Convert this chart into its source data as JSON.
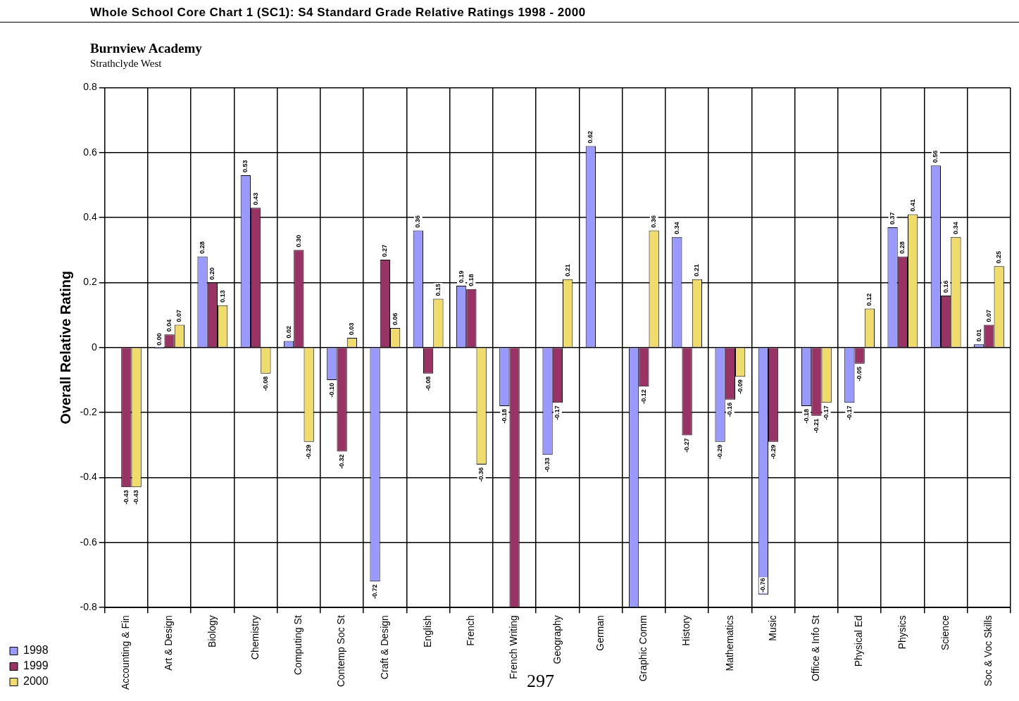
{
  "chart_data": {
    "type": "bar",
    "title": "Whole School Core Chart 1 (SC1): S4 Standard Grade Relative Ratings 1998 - 2000",
    "subtitle": "Burnview Academy\nStrathclyde West",
    "ylabel": "Overall Relative Rating",
    "categories": [
      "Accounting & Fin",
      "Art & Design",
      "Biology",
      "Chemistry",
      "Computing St",
      "Contemp Soc St",
      "Craft & Design",
      "English",
      "French",
      "French Writing",
      "Geography",
      "German",
      "Graphic Comm",
      "History",
      "Mathematics",
      "Music",
      "Office & Info St",
      "Physical Ed",
      "Physics",
      "Science",
      "Soc & Voc Skills"
    ],
    "series": [
      {
        "name": "1998",
        "color": "#9999ff",
        "values": [
          null,
          0.0,
          0.28,
          0.53,
          0.02,
          -0.1,
          -0.72,
          0.36,
          0.19,
          -0.18,
          -0.33,
          0.62,
          -0.8,
          0.34,
          -0.29,
          -0.76,
          -0.18,
          -0.17,
          0.37,
          0.56,
          0.01
        ],
        "value_labels": [
          null,
          "0.00",
          "0.28",
          "0.53",
          "0.02",
          "-0.10",
          "-0.72",
          "0.36",
          "0.19",
          "-0.18",
          "-0.33",
          "0.62",
          null,
          "0.34",
          "-0.29",
          "-0.76",
          "-0.18",
          "-0.17",
          "0.37",
          "0.56",
          "0.01"
        ]
      },
      {
        "name": "1999",
        "color": "#993366",
        "values": [
          -0.43,
          0.04,
          0.2,
          0.43,
          0.3,
          -0.32,
          0.27,
          -0.08,
          0.18,
          -0.8,
          -0.17,
          null,
          -0.12,
          -0.27,
          -0.16,
          -0.29,
          -0.21,
          -0.05,
          0.28,
          0.16,
          0.07
        ],
        "value_labels": [
          "-0.43",
          "0.04",
          "0.20",
          "0.43",
          "0.30",
          "-0.32",
          "0.27",
          "-0.08",
          "0.18",
          null,
          "-0.17",
          null,
          "-0.12",
          "-0.27",
          "-0.16",
          "-0.29",
          "-0.21",
          "-0.05",
          "0.28",
          "0.16",
          "0.07"
        ]
      },
      {
        "name": "2000",
        "color": "#f0dc6a",
        "values": [
          -0.43,
          0.07,
          0.13,
          -0.08,
          -0.29,
          0.03,
          0.06,
          0.15,
          -0.36,
          null,
          0.21,
          null,
          0.36,
          0.21,
          -0.09,
          null,
          -0.17,
          0.12,
          0.41,
          0.34,
          0.25
        ],
        "value_labels": [
          "-0.43",
          "0.07",
          "0.13",
          "-0.08",
          "-0.29",
          "0.03",
          "0.06",
          "0.15",
          "-0.36",
          null,
          "0.21",
          null,
          "0.36",
          "0.21",
          "-0.09",
          null,
          "-0.17",
          "0.12",
          "0.41",
          "0.34",
          "0.25"
        ]
      }
    ],
    "ylim": [
      -0.8,
      0.8
    ],
    "yticks": [
      -0.8,
      -0.6,
      -0.4,
      -0.2,
      0,
      0.2,
      0.4,
      0.6,
      0.8
    ],
    "grid": true,
    "legend": "bottom left",
    "annotations": [
      "297"
    ]
  }
}
